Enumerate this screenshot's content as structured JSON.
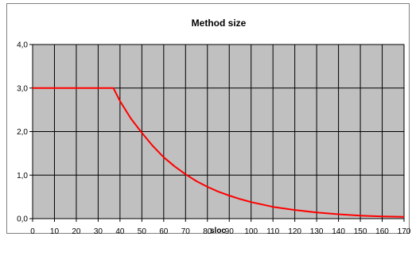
{
  "chart_data": {
    "type": "line",
    "title": "Method size",
    "xlabel": "sloc",
    "ylabel": "",
    "xlim": [
      0,
      170
    ],
    "ylim": [
      0,
      4
    ],
    "x_ticks": [
      "0",
      "10",
      "20",
      "30",
      "40",
      "50",
      "60",
      "70",
      "80",
      "90",
      "100",
      "110",
      "120",
      "130",
      "140",
      "150",
      "160",
      "170"
    ],
    "y_ticks": [
      "0,0",
      "1,0",
      "2,0",
      "3,0",
      "4,0"
    ],
    "grid": true,
    "legend": "none",
    "colors": {
      "plot_bg": "#c0c0c0",
      "line": "#ff0000",
      "grid": "#000000"
    },
    "series": [
      {
        "x": [
          0,
          10,
          20,
          30,
          37,
          40,
          45,
          50,
          55,
          60,
          65,
          70,
          75,
          80,
          85,
          90,
          95,
          100,
          110,
          120,
          130,
          140,
          150,
          160,
          170
        ],
        "values": [
          3.0,
          3.0,
          3.0,
          3.0,
          3.0,
          2.7,
          2.3,
          1.97,
          1.67,
          1.41,
          1.2,
          1.02,
          0.86,
          0.73,
          0.62,
          0.53,
          0.45,
          0.38,
          0.27,
          0.2,
          0.14,
          0.1,
          0.07,
          0.05,
          0.04
        ]
      }
    ]
  }
}
